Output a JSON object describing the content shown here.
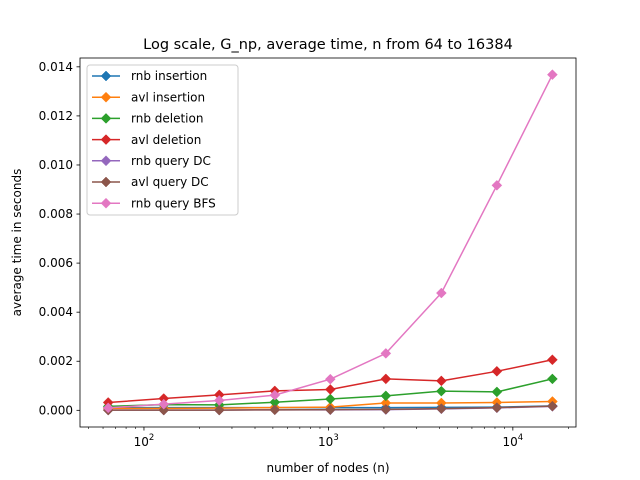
{
  "chart_data": {
    "type": "line",
    "title": "Log scale, G_np, average time, n from 64 to 16384",
    "xlabel": "number of nodes (n)",
    "ylabel": "average time in seconds",
    "xscale": "log",
    "xlim": [
      45,
      22000
    ],
    "ylim": [
      -0.00068,
      0.01436
    ],
    "x_ticks": [
      {
        "value": 100,
        "base": "10",
        "exp": "2"
      },
      {
        "value": 1000,
        "base": "10",
        "exp": "3"
      },
      {
        "value": 10000,
        "base": "10",
        "exp": "4"
      }
    ],
    "y_ticks": [
      {
        "value": 0.0,
        "label": "0.000"
      },
      {
        "value": 0.002,
        "label": "0.002"
      },
      {
        "value": 0.004,
        "label": "0.004"
      },
      {
        "value": 0.006,
        "label": "0.006"
      },
      {
        "value": 0.008,
        "label": "0.008"
      },
      {
        "value": 0.01,
        "label": "0.010"
      },
      {
        "value": 0.012,
        "label": "0.012"
      },
      {
        "value": 0.014,
        "label": "0.014"
      }
    ],
    "grid": false,
    "legend_position": "top-left",
    "marker": "diamond",
    "x": [
      64,
      128,
      256,
      512,
      1024,
      2048,
      4096,
      8192,
      16384
    ],
    "series": [
      {
        "name": "rnb insertion",
        "color": "#1f77b4",
        "values": [
          0.00011,
          0.00011,
          0.00011,
          0.00011,
          0.00011,
          0.00011,
          0.00012,
          0.00013,
          0.00018
        ]
      },
      {
        "name": "avl insertion",
        "color": "#ff7f0e",
        "values": [
          8e-05,
          8e-05,
          9e-05,
          0.00011,
          0.00013,
          0.0003,
          0.0003,
          0.00032,
          0.00036
        ]
      },
      {
        "name": "rnb deletion",
        "color": "#2ca02c",
        "values": [
          0.00016,
          0.00023,
          0.00022,
          0.00033,
          0.00046,
          0.00059,
          0.00078,
          0.00075,
          0.00128
        ]
      },
      {
        "name": "avl deletion",
        "color": "#d62728",
        "values": [
          0.00032,
          0.00048,
          0.00063,
          0.00079,
          0.00085,
          0.00128,
          0.0012,
          0.00159,
          0.00206
        ]
      },
      {
        "name": "rnb query DC",
        "color": "#9467bd",
        "values": [
          1e-05,
          1e-05,
          1e-05,
          2e-05,
          2e-05,
          3e-05,
          6e-05,
          0.0001,
          0.00016
        ]
      },
      {
        "name": "avl query DC",
        "color": "#8c564b",
        "values": [
          1e-05,
          1e-05,
          1e-05,
          2e-05,
          3e-05,
          4e-05,
          7e-05,
          0.00011,
          0.00017
        ]
      },
      {
        "name": "rnb query BFS",
        "color": "#e377c2",
        "values": [
          0.0001,
          0.00025,
          0.0004,
          0.00062,
          0.00127,
          0.00232,
          0.00478,
          0.00917,
          0.01368
        ]
      }
    ]
  }
}
